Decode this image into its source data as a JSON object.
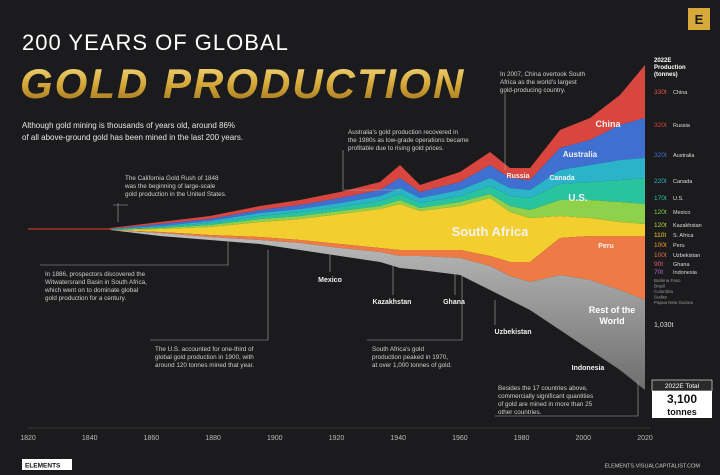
{
  "header": {
    "title_line1": "200 YEARS OF GLOBAL",
    "title_line2": "GOLD PRODUCTION",
    "intro": [
      "Although gold mining is thousands of years old, around 86%",
      "of all above-ground gold has been mined in the last 200 years."
    ]
  },
  "annotations": [
    {
      "lines": [
        "The California Gold Rush of 1848",
        "was the beginning of large-scale",
        "gold production in the United States."
      ]
    },
    {
      "lines": [
        "In 1886, prospectors discovered the",
        "Witwatersrand Basin in South Africa,",
        "which went on to dominate global",
        "gold production for a century."
      ]
    },
    {
      "lines": [
        "The U.S. accounted for one-third of",
        "global gold production in 1900, with",
        "around 120 tonnes mined that year."
      ]
    },
    {
      "lines": [
        "Australia's gold production recovered in",
        "the 1980s as low-grade operations became",
        "profitable due to rising gold prices."
      ]
    },
    {
      "lines": [
        "In 2007, China overtook South",
        "Africa as the world's largest",
        "gold-producing country."
      ]
    },
    {
      "lines": [
        "South Africa's gold",
        "production peaked in 1970,",
        "at over 1,000 tonnes of gold."
      ]
    },
    {
      "lines": [
        "Besides the 17 countries above,",
        "commercially significant quantities",
        "of gold are mined in more than 25",
        "other countries."
      ]
    }
  ],
  "stream_labels": [
    "China",
    "Russia",
    "Australia",
    "Canada",
    "U.S.",
    "South Africa",
    "Peru",
    "Mexico",
    "Kazakhstan",
    "Ghana",
    "Uzbekistan",
    "Indonesia",
    "Rest of the",
    "World"
  ],
  "legend": {
    "header": [
      "2022E",
      "Production",
      "(tonnes)"
    ],
    "entries": [
      {
        "value": "330t",
        "name": "China",
        "color": "#e8544a"
      },
      {
        "value": "320t",
        "name": "Russia",
        "color": "#d9463f"
      },
      {
        "value": "320t",
        "name": "Australia",
        "color": "#3f6fd1"
      },
      {
        "value": "220t",
        "name": "Canada",
        "color": "#2bb3c9"
      },
      {
        "value": "170t",
        "name": "U.S.",
        "color": "#29c3a0"
      },
      {
        "value": "120t",
        "name": "Mexico",
        "color": "#7ccf4d"
      },
      {
        "value": "120t",
        "name": "Kazakhstan",
        "color": "#b7d93c"
      },
      {
        "value": "110t",
        "name": "S. Africa",
        "color": "#f2cf2e"
      },
      {
        "value": "100t",
        "name": "Peru",
        "color": "#f29a2e"
      },
      {
        "value": "100t",
        "name": "Uzbekistan",
        "color": "#ee6d4a"
      },
      {
        "value": "90t",
        "name": "Ghana",
        "color": "#e9557a"
      },
      {
        "value": "70t",
        "name": "Indonesia",
        "color": "#b56ad6"
      }
    ],
    "small": [
      "Burkina Faso",
      "Brazil",
      "Colombia",
      "Sudan",
      "Papua New Guinea"
    ],
    "rest": "1,030t"
  },
  "total": {
    "label": "2022E Total",
    "value": "3,100",
    "unit": "tonnes"
  },
  "x_axis": [
    "1820",
    "1840",
    "1860",
    "1880",
    "1900",
    "1920",
    "1940",
    "1960",
    "1980",
    "2000",
    "2020"
  ],
  "footer": {
    "brand": "ELEMENTS",
    "url": "ELEMENTS.VISUALCAPITALIST.COM"
  }
}
